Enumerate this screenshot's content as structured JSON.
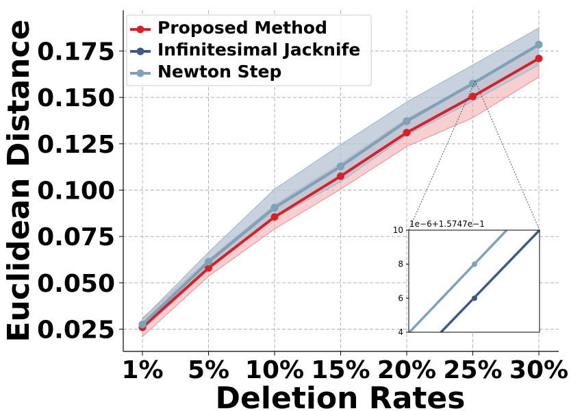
{
  "chart_data": {
    "type": "line",
    "categories": [
      "1%",
      "5%",
      "10%",
      "15%",
      "20%",
      "25%",
      "30%"
    ],
    "xlabel": "Deletion Rates",
    "ylabel": "Euclidean Distance",
    "ylim": [
      0.013,
      0.197
    ],
    "yticks": [
      "0.025",
      "0.050",
      "0.075",
      "0.100",
      "0.125",
      "0.150",
      "0.175"
    ],
    "ytick_values": [
      0.025,
      0.05,
      0.075,
      0.1,
      0.125,
      0.15,
      0.175
    ],
    "grid": true,
    "legend_position": "top-left",
    "series": [
      {
        "name": "Proposed Method",
        "color": "#d62129",
        "band_color": "#f2a8ac",
        "values": [
          0.026,
          0.058,
          0.0855,
          0.1075,
          0.131,
          0.1505,
          0.171
        ],
        "lower": [
          0.021,
          0.0535,
          0.079,
          0.1005,
          0.1235,
          0.139,
          0.161
        ],
        "upper": [
          0.031,
          0.0625,
          0.092,
          0.1145,
          0.1385,
          0.1575,
          0.1775
        ]
      },
      {
        "name": "Infinitesimal Jacknife",
        "color": "#3b5a8a",
        "band_color": "#b4c3d3",
        "values": [
          0.0275,
          0.0613,
          0.0905,
          0.1128,
          0.1372,
          0.1575,
          0.1785
        ],
        "lower": [
          0.0245,
          0.057,
          0.085,
          0.1045,
          0.1295,
          0.148,
          0.1675
        ],
        "upper": [
          0.0305,
          0.0665,
          0.1005,
          0.1245,
          0.1475,
          0.1675,
          0.1875
        ]
      },
      {
        "name": "Newton Step",
        "color": "#7da3b8",
        "band_color": "#b4c3d3",
        "values": [
          0.0275,
          0.0613,
          0.0905,
          0.1128,
          0.1372,
          0.1575,
          0.1785
        ],
        "lower": [
          0.0245,
          0.057,
          0.085,
          0.1045,
          0.1295,
          0.148,
          0.1675
        ],
        "upper": [
          0.0305,
          0.0665,
          0.1005,
          0.1245,
          0.1475,
          0.1675,
          0.1875
        ]
      }
    ],
    "inset": {
      "offset_label": "1e−6+1.5747e−1",
      "yticks": [
        "4",
        "6",
        "8",
        "10"
      ],
      "ylim": [
        4,
        10
      ],
      "points": [
        {
          "series": "Newton Step",
          "y": 8,
          "color": "#7da3b8"
        },
        {
          "series": "Infinitesimal Jacknife",
          "y": 6,
          "color": "#3b5a8a"
        }
      ]
    }
  }
}
